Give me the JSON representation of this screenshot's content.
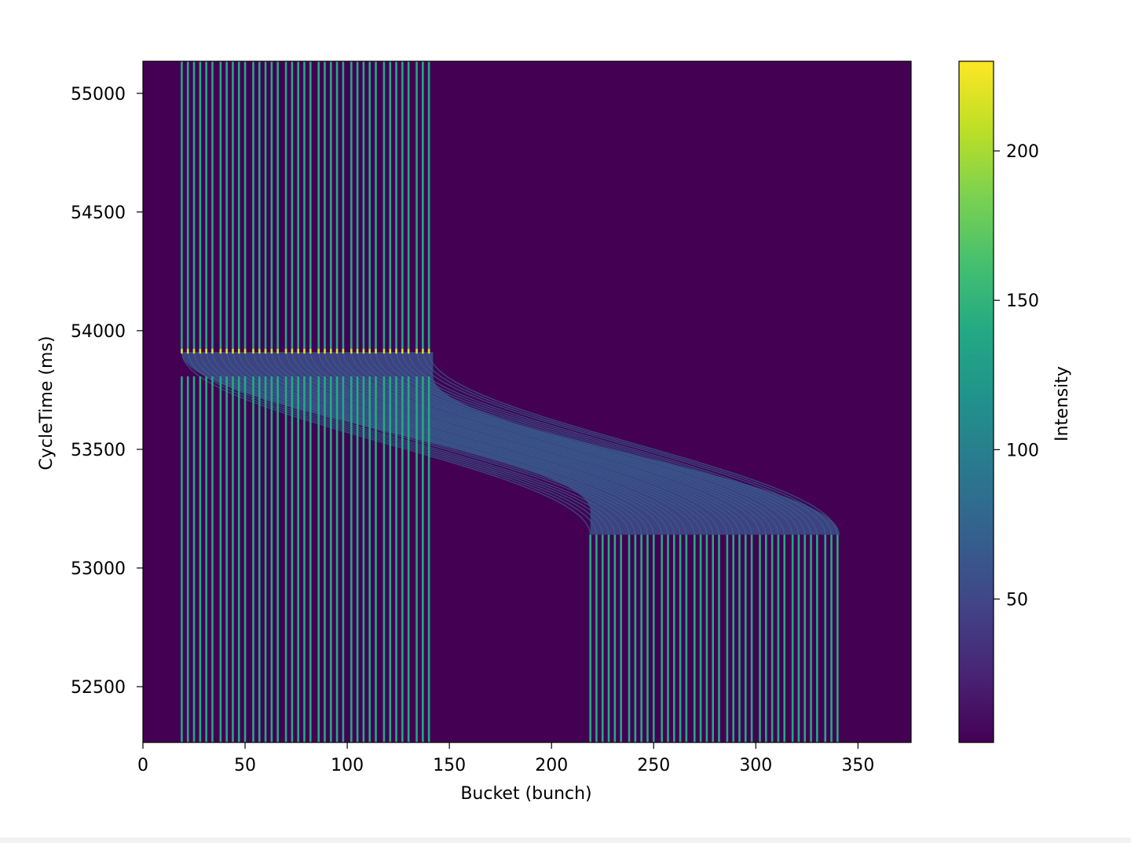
{
  "chart_data": {
    "type": "heatmap",
    "title": "",
    "xlabel": "Bucket (bunch)",
    "ylabel": "CycleTime (ms)",
    "xlim": [
      0,
      376
    ],
    "ylim": [
      52265,
      55135
    ],
    "xticks": [
      0,
      50,
      100,
      150,
      200,
      250,
      300,
      350
    ],
    "yticks": [
      52500,
      53000,
      53500,
      54000,
      54500,
      55000
    ],
    "colormap": "viridis",
    "colorbar": {
      "label": "Intensity",
      "range": [
        2,
        230
      ],
      "ticks": [
        50,
        100,
        150,
        200
      ]
    },
    "background_intensity": 3,
    "bunch_intensity": 140,
    "peak_intensity": 215,
    "transition_band_intensity": 55,
    "left_bunch_buckets": [
      19,
      22,
      25,
      28,
      31,
      34,
      38,
      41,
      44,
      47,
      50,
      54,
      57,
      60,
      63,
      66,
      70,
      73,
      76,
      79,
      82,
      86,
      89,
      92,
      95,
      98,
      102,
      105,
      108,
      111,
      114,
      118,
      121,
      124,
      127,
      130,
      134,
      137,
      140
    ],
    "right_bunch_buckets": [
      219,
      222,
      225,
      228,
      231,
      234,
      238,
      241,
      244,
      247,
      250,
      254,
      257,
      260,
      263,
      266,
      270,
      273,
      276,
      279,
      282,
      286,
      289,
      292,
      295,
      298,
      302,
      305,
      308,
      311,
      314,
      318,
      321,
      324,
      327,
      330,
      334,
      337,
      340
    ],
    "left_lines_end_time": 53900,
    "left_lines_restart_time": 53910,
    "right_lines_start_time": 53140,
    "transition": {
      "start_time": 53910,
      "end_time": 53140,
      "start_bucket_range": [
        19,
        142
      ],
      "end_bucket_range": [
        219,
        341
      ]
    }
  }
}
